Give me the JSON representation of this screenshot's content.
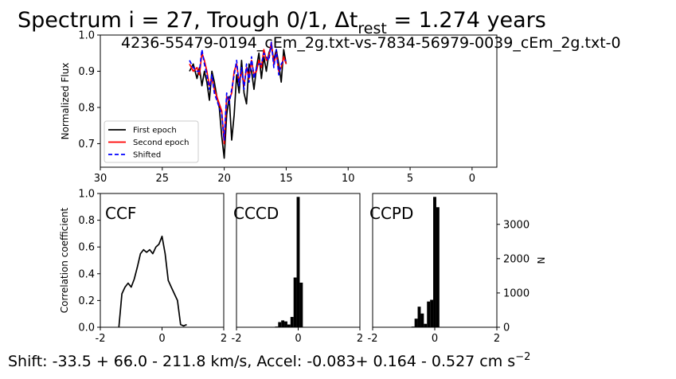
{
  "figure": {
    "title": {
      "main": "Spectrum i = 27, Trough 0/1, Δt",
      "sub": "rest",
      "rest": " = 1.274 years"
    },
    "subtitle": "4236-55479-0194_cEm_2g.txt-vs-7834-56979-0039_cEm_2g.txt-0",
    "footer": {
      "a": "Shift: -33.5 +  66.0 - 211.8 km/s, Accel: -0.083+ 0.164 - 0.527 cm s",
      "sup": "−2"
    }
  },
  "chart_data": [
    {
      "id": "spectrum",
      "type": "line",
      "xlabel": "",
      "ylabel": "Normalized Flux",
      "xlim": [
        30,
        -2
      ],
      "ylim": [
        0.635,
        1.0
      ],
      "xticks": [
        30,
        25,
        20,
        15,
        10,
        5,
        0
      ],
      "yticks": [
        0.7,
        0.8,
        0.9,
        1.0
      ],
      "ytick_labels": [
        "0.7",
        "0.8",
        "0.9",
        "1.0"
      ],
      "legend": {
        "position": "lower-left",
        "entries": [
          "First epoch",
          "Second epoch",
          "Shifted"
        ]
      },
      "series": [
        {
          "name": "First epoch",
          "color": "#000000",
          "dash": "solid",
          "x": [
            22.8,
            22.5,
            22.2,
            22.0,
            21.8,
            21.6,
            21.4,
            21.2,
            21.0,
            20.8,
            20.6,
            20.4,
            20.2,
            20.0,
            19.8,
            19.6,
            19.4,
            19.2,
            19.0,
            18.8,
            18.6,
            18.4,
            18.2,
            18.0,
            17.8,
            17.6,
            17.4,
            17.2,
            17.0,
            16.8,
            16.6,
            16.4,
            16.2,
            16.0,
            15.8,
            15.6,
            15.4,
            15.2,
            15.0
          ],
          "y": [
            0.9,
            0.92,
            0.88,
            0.91,
            0.86,
            0.9,
            0.87,
            0.82,
            0.9,
            0.87,
            0.83,
            0.8,
            0.72,
            0.66,
            0.78,
            0.83,
            0.71,
            0.78,
            0.89,
            0.84,
            0.93,
            0.84,
            0.81,
            0.92,
            0.9,
            0.85,
            0.91,
            0.95,
            0.88,
            0.94,
            0.9,
            0.95,
            0.97,
            0.93,
            0.96,
            0.92,
            0.87,
            0.96,
            0.92
          ]
        },
        {
          "name": "Second epoch",
          "color": "#ff0000",
          "dash": "solid",
          "x": [
            22.8,
            22.5,
            22.2,
            22.0,
            21.8,
            21.6,
            21.4,
            21.2,
            21.0,
            20.8,
            20.6,
            20.4,
            20.2,
            20.0,
            19.8,
            19.6,
            19.4,
            19.2,
            19.0,
            18.8,
            18.6,
            18.4,
            18.2,
            18.0,
            17.8,
            17.6,
            17.4,
            17.2,
            17.0,
            16.8,
            16.6,
            16.4,
            16.2,
            16.0,
            15.8,
            15.6,
            15.4,
            15.2,
            15.0
          ],
          "y": [
            0.92,
            0.9,
            0.91,
            0.89,
            0.95,
            0.93,
            0.9,
            0.86,
            0.88,
            0.85,
            0.83,
            0.81,
            0.79,
            0.7,
            0.83,
            0.82,
            0.84,
            0.9,
            0.92,
            0.87,
            0.9,
            0.86,
            0.91,
            0.88,
            0.93,
            0.89,
            0.9,
            0.93,
            0.91,
            0.96,
            0.93,
            0.94,
            0.98,
            0.92,
            0.95,
            0.9,
            0.91,
            0.94,
            0.92
          ]
        },
        {
          "name": "Shifted",
          "color": "#0000ff",
          "dash": "dashed",
          "x": [
            22.8,
            22.5,
            22.2,
            22.0,
            21.8,
            21.6,
            21.4,
            21.2,
            21.0,
            20.8,
            20.6,
            20.4,
            20.2,
            20.0,
            19.8,
            19.6,
            19.4,
            19.2,
            19.0,
            18.8,
            18.6,
            18.4,
            18.2,
            18.0,
            17.8,
            17.6,
            17.4,
            17.2,
            17.0,
            16.8,
            16.6,
            16.4,
            16.2,
            16.0,
            15.8,
            15.6,
            15.4,
            15.2,
            15.0
          ],
          "y": [
            0.93,
            0.91,
            0.9,
            0.9,
            0.96,
            0.92,
            0.89,
            0.85,
            0.89,
            0.84,
            0.82,
            0.8,
            0.78,
            0.71,
            0.84,
            0.81,
            0.85,
            0.89,
            0.93,
            0.86,
            0.91,
            0.85,
            0.92,
            0.87,
            0.94,
            0.88,
            0.91,
            0.92,
            0.92,
            0.95,
            0.94,
            0.93,
            0.98,
            0.91,
            0.96,
            0.89,
            0.92,
            0.93,
            0.93
          ]
        }
      ]
    },
    {
      "id": "ccf",
      "type": "line",
      "label": "CCF",
      "xlabel": "",
      "ylabel": "Correlation coefficient",
      "xlim": [
        -2,
        2
      ],
      "ylim": [
        0,
        1
      ],
      "xticks": [
        -2,
        0,
        2
      ],
      "yticks": [
        0,
        0.2,
        0.4,
        0.6,
        0.8,
        1.0
      ],
      "ytick_labels": [
        "0.0",
        "0.2",
        "0.4",
        "0.6",
        "0.8",
        "1.0"
      ],
      "series": [
        {
          "name": "",
          "color": "#000000",
          "x": [
            -1.4,
            -1.3,
            -1.2,
            -1.1,
            -1.0,
            -0.9,
            -0.8,
            -0.7,
            -0.6,
            -0.5,
            -0.4,
            -0.3,
            -0.2,
            -0.1,
            0.0,
            0.1,
            0.2,
            0.3,
            0.4,
            0.5,
            0.6,
            0.7,
            0.8
          ],
          "y": [
            0.0,
            0.25,
            0.3,
            0.33,
            0.3,
            0.36,
            0.45,
            0.55,
            0.58,
            0.56,
            0.58,
            0.55,
            0.6,
            0.62,
            0.68,
            0.55,
            0.35,
            0.3,
            0.25,
            0.2,
            0.02,
            0.01,
            0.02
          ]
        }
      ]
    },
    {
      "id": "cccd",
      "type": "bar",
      "label": "CCCD",
      "xlim": [
        -2,
        2
      ],
      "xticks": [
        -2,
        0,
        2
      ],
      "ylim": [
        0,
        3900
      ],
      "bin_width": 0.1,
      "x": [
        -0.7,
        -0.6,
        -0.5,
        -0.4,
        -0.3,
        -0.2,
        -0.1,
        0.0,
        0.1
      ],
      "values": [
        20,
        150,
        200,
        170,
        80,
        300,
        1450,
        3800,
        1300
      ]
    },
    {
      "id": "ccpd",
      "type": "bar",
      "label": "CCPD",
      "xlabel": "",
      "ylabel": "N",
      "xlim": [
        -2,
        2
      ],
      "xticks": [
        -2,
        0,
        2
      ],
      "ylim": [
        0,
        3900
      ],
      "yticks": [
        0,
        1000,
        2000,
        3000
      ],
      "bin_width": 0.1,
      "x": [
        -0.7,
        -0.6,
        -0.5,
        -0.4,
        -0.3,
        -0.2,
        -0.1,
        0.0,
        0.1
      ],
      "values": [
        20,
        250,
        600,
        400,
        100,
        750,
        800,
        3800,
        3500
      ]
    }
  ]
}
